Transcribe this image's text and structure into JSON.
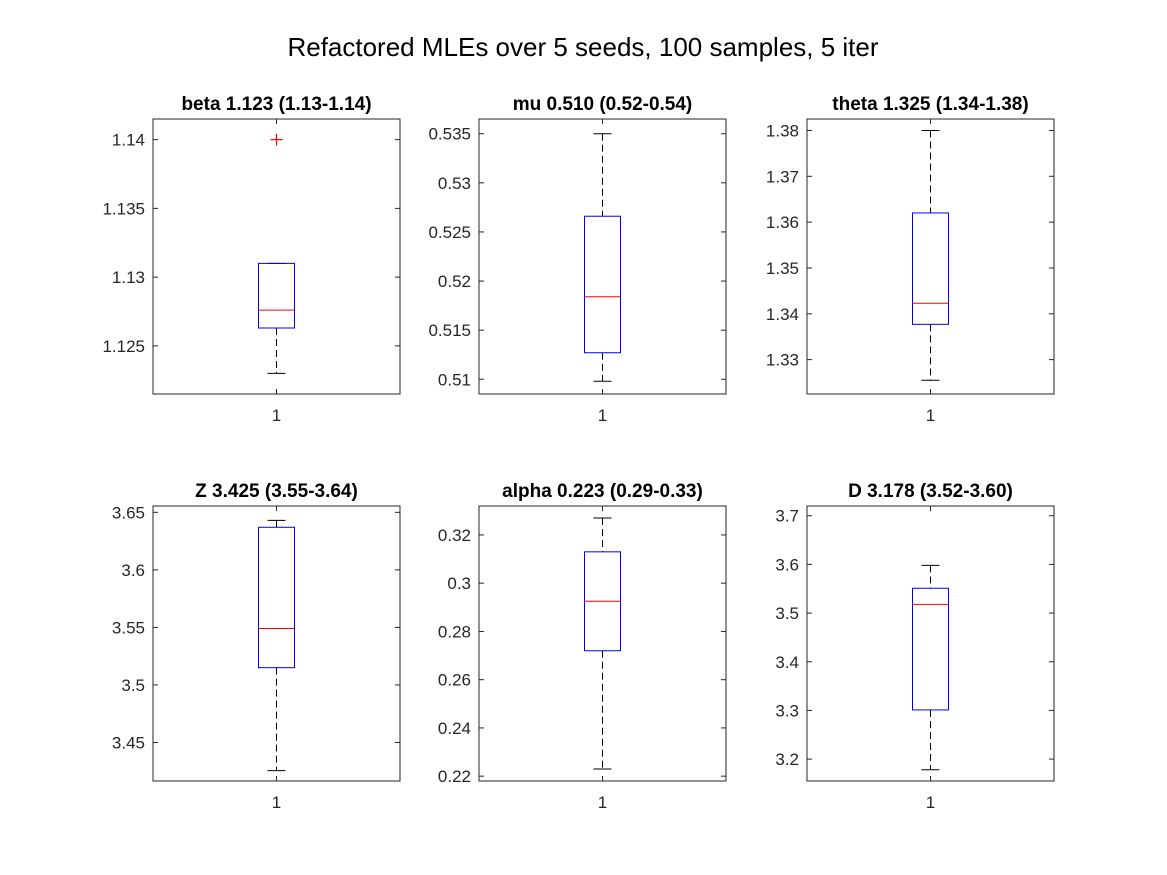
{
  "figure": {
    "title": "Refactored MLEs over 5 seeds, 100 samples, 5 iter"
  },
  "chart_data": [
    {
      "type": "boxplot",
      "title": "beta 1.123 (1.13-1.14)",
      "categories": [
        "1"
      ],
      "ylim": [
        1.1215,
        1.1415
      ],
      "yticks": [
        1.125,
        1.13,
        1.135,
        1.14
      ],
      "ytick_labels": [
        "1.125",
        "1.13",
        "1.135",
        "1.14"
      ],
      "box": {
        "whisker_low": 1.123,
        "q1": 1.1263,
        "median": 1.1276,
        "q3": 1.131,
        "whisker_high": 1.131,
        "outliers": [
          1.14
        ]
      },
      "colors": {
        "box": "#0000ff",
        "median": "#ff0000",
        "outlier": "#ff0000"
      }
    },
    {
      "type": "boxplot",
      "title": "mu 0.510 (0.52-0.54)",
      "categories": [
        "1"
      ],
      "ylim": [
        0.5085,
        0.5365
      ],
      "yticks": [
        0.51,
        0.515,
        0.52,
        0.525,
        0.53,
        0.535
      ],
      "ytick_labels": [
        "0.51",
        "0.515",
        "0.52",
        "0.525",
        "0.53",
        "0.535"
      ],
      "box": {
        "whisker_low": 0.5098,
        "q1": 0.5127,
        "median": 0.5184,
        "q3": 0.5266,
        "whisker_high": 0.535,
        "outliers": []
      },
      "colors": {
        "box": "#0000ff",
        "median": "#ff0000",
        "outlier": "#ff0000"
      }
    },
    {
      "type": "boxplot",
      "title": "theta 1.325 (1.34-1.38)",
      "categories": [
        "1"
      ],
      "ylim": [
        1.3225,
        1.3825
      ],
      "yticks": [
        1.33,
        1.34,
        1.35,
        1.36,
        1.37,
        1.38
      ],
      "ytick_labels": [
        "1.33",
        "1.34",
        "1.35",
        "1.36",
        "1.37",
        "1.38"
      ],
      "box": {
        "whisker_low": 1.3255,
        "q1": 1.3377,
        "median": 1.3423,
        "q3": 1.362,
        "whisker_high": 1.38,
        "outliers": []
      },
      "colors": {
        "box": "#0000ff",
        "median": "#ff0000",
        "outlier": "#ff0000"
      }
    },
    {
      "type": "boxplot",
      "title": "Z 3.425 (3.55-3.64)",
      "categories": [
        "1"
      ],
      "ylim": [
        3.4165,
        3.6555
      ],
      "yticks": [
        3.45,
        3.5,
        3.55,
        3.6,
        3.65
      ],
      "ytick_labels": [
        "3.45",
        "3.5",
        "3.55",
        "3.6",
        "3.65"
      ],
      "box": {
        "whisker_low": 3.4255,
        "q1": 3.515,
        "median": 3.549,
        "q3": 3.637,
        "whisker_high": 3.643,
        "outliers": []
      },
      "colors": {
        "box": "#0000ff",
        "median": "#ff0000",
        "outlier": "#ff0000"
      }
    },
    {
      "type": "boxplot",
      "title": "alpha 0.223 (0.29-0.33)",
      "categories": [
        "1"
      ],
      "ylim": [
        0.218,
        0.332
      ],
      "yticks": [
        0.22,
        0.24,
        0.26,
        0.28,
        0.3,
        0.32
      ],
      "ytick_labels": [
        "0.22",
        "0.24",
        "0.26",
        "0.28",
        "0.3",
        "0.32"
      ],
      "box": {
        "whisker_low": 0.223,
        "q1": 0.272,
        "median": 0.2925,
        "q3": 0.313,
        "whisker_high": 0.327,
        "outliers": []
      },
      "colors": {
        "box": "#0000ff",
        "median": "#ff0000",
        "outlier": "#ff0000"
      }
    },
    {
      "type": "boxplot",
      "title": "D 3.178 (3.52-3.60)",
      "categories": [
        "1"
      ],
      "ylim": [
        3.155,
        3.72
      ],
      "yticks": [
        3.2,
        3.3,
        3.4,
        3.5,
        3.6,
        3.7
      ],
      "ytick_labels": [
        "3.2",
        "3.3",
        "3.4",
        "3.5",
        "3.6",
        "3.7"
      ],
      "box": {
        "whisker_low": 3.178,
        "q1": 3.301,
        "median": 3.518,
        "q3": 3.551,
        "whisker_high": 3.598,
        "outliers": []
      },
      "colors": {
        "box": "#0000ff",
        "median": "#ff0000",
        "outlier": "#ff0000"
      }
    }
  ]
}
